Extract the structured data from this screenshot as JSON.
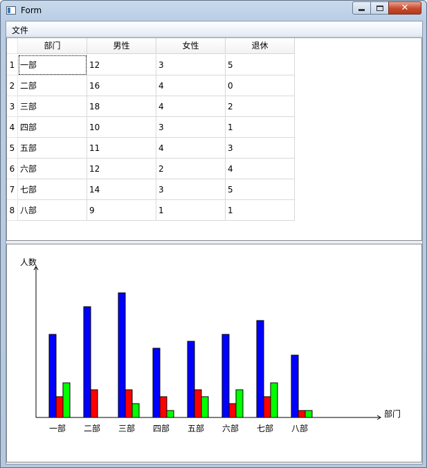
{
  "window": {
    "title": "Form"
  },
  "menu": {
    "items": [
      {
        "label": "文件"
      }
    ]
  },
  "table": {
    "columns": [
      "部门",
      "男性",
      "女性",
      "退休"
    ],
    "rows": [
      {
        "index": "1",
        "cells": [
          "一部",
          "12",
          "3",
          "5"
        ]
      },
      {
        "index": "2",
        "cells": [
          "二部",
          "16",
          "4",
          "0"
        ]
      },
      {
        "index": "3",
        "cells": [
          "三部",
          "18",
          "4",
          "2"
        ]
      },
      {
        "index": "4",
        "cells": [
          "四部",
          "10",
          "3",
          "1"
        ]
      },
      {
        "index": "5",
        "cells": [
          "五部",
          "11",
          "4",
          "3"
        ]
      },
      {
        "index": "6",
        "cells": [
          "六部",
          "12",
          "2",
          "4"
        ]
      },
      {
        "index": "7",
        "cells": [
          "七部",
          "14",
          "3",
          "5"
        ]
      },
      {
        "index": "8",
        "cells": [
          "八部",
          "9",
          "1",
          "1"
        ]
      }
    ]
  },
  "chart_data": {
    "type": "bar",
    "xlabel": "部门",
    "ylabel": "人数",
    "categories": [
      "一部",
      "二部",
      "三部",
      "四部",
      "五部",
      "六部",
      "七部",
      "八部"
    ],
    "series": [
      {
        "values": [
          12,
          16,
          18,
          10,
          11,
          12,
          14,
          9
        ],
        "color": "#0000ff"
      },
      {
        "values": [
          3,
          4,
          4,
          3,
          4,
          2,
          3,
          1
        ],
        "color": "#ff0000"
      },
      {
        "values": [
          5,
          0,
          2,
          1,
          3,
          4,
          5,
          1
        ],
        "color": "#00ff00"
      }
    ],
    "ylim": [
      0,
      22
    ],
    "grid": false,
    "legend": "none"
  }
}
